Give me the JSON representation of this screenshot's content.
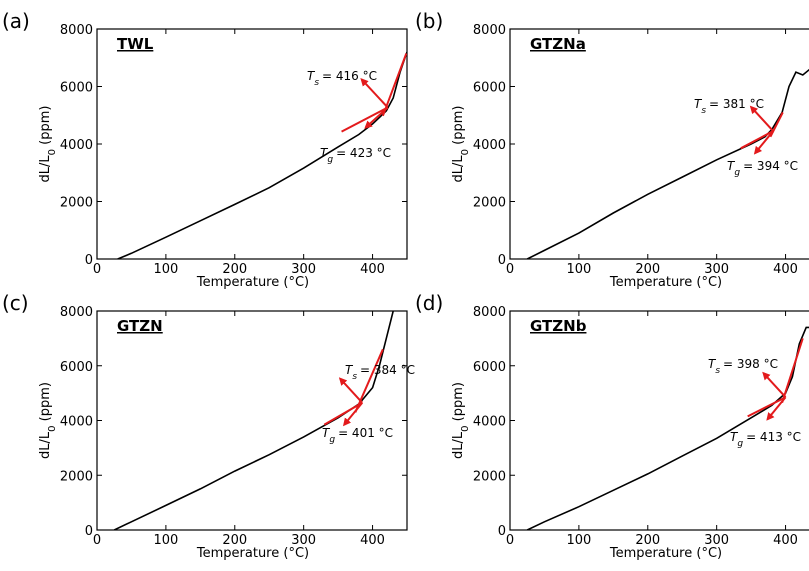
{
  "colors": {
    "curve": "#000000",
    "fit": "#e31a1c",
    "axis": "#000000"
  },
  "chart_data": [
    {
      "panel_label": "(a)",
      "type": "line",
      "title": "TWL",
      "xlabel": "Temperature (°C)",
      "ylabel": "dL/L0 (ppm)",
      "xlim": [
        0,
        450
      ],
      "ylim": [
        0,
        8000
      ],
      "xticks": [
        "0",
        "100",
        "200",
        "300",
        "400"
      ],
      "yticks": [
        "0",
        "2000",
        "4000",
        "6000",
        "8000"
      ],
      "grid": false,
      "series": [
        {
          "x": [
            30,
            50,
            100,
            150,
            200,
            250,
            300,
            350,
            380,
            400,
            420,
            430,
            440,
            450
          ],
          "y": [
            0,
            200,
            760,
            1330,
            1900,
            2480,
            3160,
            3900,
            4330,
            4700,
            5150,
            5600,
            6500,
            7200
          ]
        }
      ],
      "fit_lines": [
        {
          "x": [
            355,
            422
          ],
          "y": [
            4430,
            5270
          ]
        },
        {
          "x": [
            415,
            449
          ],
          "y": [
            4980,
            7150
          ]
        }
      ],
      "annotations": [
        {
          "label": "T",
          "sub": "s",
          "value": "= 416 °C"
        },
        {
          "label": "T",
          "sub": "g",
          "value": "= 423 °C"
        }
      ]
    },
    {
      "panel_label": "(b)",
      "type": "line",
      "title": "GTZNa",
      "xlabel": "Temperature (°C)",
      "ylabel": "dL/L0 (ppm)",
      "xlim": [
        0,
        450
      ],
      "ylim": [
        0,
        8000
      ],
      "xticks": [
        "0",
        "100",
        "200",
        "300",
        "400"
      ],
      "yticks": [
        "0",
        "2000",
        "4000",
        "6000",
        "8000"
      ],
      "grid": false,
      "series": [
        {
          "x": [
            25,
            50,
            100,
            150,
            200,
            250,
            300,
            350,
            370,
            380,
            395,
            405,
            415,
            425,
            435,
            450
          ],
          "y": [
            0,
            300,
            900,
            1600,
            2250,
            2850,
            3450,
            4000,
            4250,
            4500,
            5100,
            6000,
            6500,
            6400,
            6600,
            6700
          ]
        }
      ],
      "fit_lines": [
        {
          "x": [
            335,
            382
          ],
          "y": [
            3850,
            4450
          ]
        },
        {
          "x": [
            378,
            396
          ],
          "y": [
            4250,
            5100
          ]
        }
      ],
      "annotations": [
        {
          "label": "T",
          "sub": "s",
          "value": "= 381 °C"
        },
        {
          "label": "T",
          "sub": "g",
          "value": "= 394 °C"
        }
      ]
    },
    {
      "panel_label": "(c)",
      "type": "line",
      "title": "GTZN",
      "xlabel": "Temperature (°C)",
      "ylabel": "dL/L0 (ppm)",
      "xlim": [
        0,
        450
      ],
      "ylim": [
        0,
        8000
      ],
      "xticks": [
        "0",
        "100",
        "200",
        "300",
        "400"
      ],
      "yticks": [
        "0",
        "2000",
        "4000",
        "6000",
        "8000"
      ],
      "grid": false,
      "series": [
        {
          "x": [
            25,
            50,
            100,
            150,
            200,
            250,
            300,
            350,
            380,
            400,
            410,
            420,
            430
          ],
          "y": [
            0,
            300,
            900,
            1500,
            2150,
            2750,
            3400,
            4100,
            4600,
            5200,
            6000,
            7000,
            8000
          ]
        }
      ],
      "fit_lines": [
        {
          "x": [
            330,
            385
          ],
          "y": [
            3850,
            4650
          ]
        },
        {
          "x": [
            375,
            415
          ],
          "y": [
            4300,
            6600
          ]
        }
      ],
      "annotations": [
        {
          "label": "T",
          "sub": "s",
          "value": "= 384 °C"
        },
        {
          "label": "T",
          "sub": "g",
          "value": "= 401 °C"
        }
      ]
    },
    {
      "panel_label": "(d)",
      "type": "line",
      "title": "GTZNb",
      "xlabel": "Temperature (°C)",
      "ylabel": "dL/L0 (ppm)",
      "xlim": [
        0,
        450
      ],
      "ylim": [
        0,
        8000
      ],
      "xticks": [
        "0",
        "100",
        "200",
        "300",
        "400"
      ],
      "yticks": [
        "0",
        "2000",
        "4000",
        "6000",
        "8000"
      ],
      "grid": false,
      "series": [
        {
          "x": [
            25,
            50,
            100,
            150,
            200,
            250,
            300,
            350,
            380,
            400,
            410,
            420,
            430,
            440,
            450
          ],
          "y": [
            0,
            300,
            850,
            1450,
            2050,
            2700,
            3350,
            4100,
            4550,
            5000,
            5600,
            6800,
            7400,
            7400,
            7400
          ]
        }
      ],
      "fit_lines": [
        {
          "x": [
            345,
            400
          ],
          "y": [
            4150,
            4850
          ]
        },
        {
          "x": [
            395,
            425
          ],
          "y": [
            4650,
            7000
          ]
        }
      ],
      "annotations": [
        {
          "label": "T",
          "sub": "s",
          "value": "= 398 °C"
        },
        {
          "label": "T",
          "sub": "g",
          "value": "= 413 °C"
        }
      ]
    }
  ]
}
